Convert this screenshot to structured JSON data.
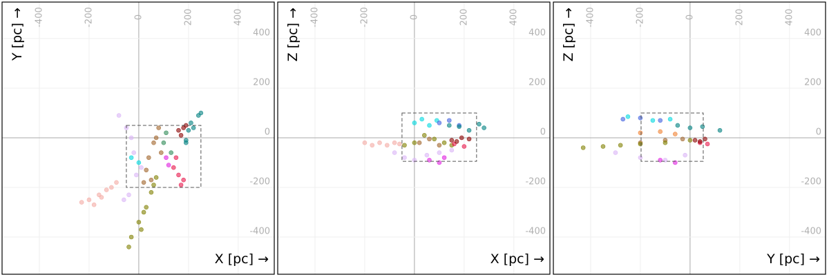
{
  "chart_data": [
    {
      "type": "scatter",
      "x_label": "X [pc] →",
      "y_label": "Y [pc] →",
      "xlim": [
        -550,
        545
      ],
      "ylim": [
        -550,
        547
      ],
      "xticks": [
        -400,
        -200,
        0,
        200,
        400
      ],
      "yticks": [
        -400,
        -200,
        0,
        200,
        400
      ],
      "box": {
        "x": [
          -50,
          250
        ],
        "y": [
          -200,
          50
        ]
      },
      "series": [
        {
          "color": "#f4aaa4",
          "x": [
            -230,
            -200,
            -160,
            -130,
            -110,
            -90,
            -180,
            -150
          ],
          "values": [
            -260,
            -250,
            -230,
            -210,
            -200,
            -180,
            -270,
            -240
          ]
        },
        {
          "color": "#dab4f6",
          "x": [
            -80,
            -50,
            -20,
            -10,
            -40,
            -60,
            10,
            -30
          ],
          "values": [
            90,
            40,
            -60,
            -150,
            -230,
            -250,
            -120,
            0
          ]
        },
        {
          "color": "#00d8e0",
          "x": [
            -30,
            0
          ],
          "values": [
            -80,
            -100
          ]
        },
        {
          "color": "#808000",
          "x": [
            70,
            50,
            30,
            0,
            -30,
            -40,
            60,
            20,
            10
          ],
          "values": [
            -160,
            -220,
            -280,
            -340,
            -400,
            -440,
            -190,
            -300,
            -370
          ]
        },
        {
          "color": "#a0642a",
          "x": [
            80,
            60,
            40,
            30,
            50,
            90,
            20,
            70
          ],
          "values": [
            40,
            -20,
            -80,
            -130,
            -170,
            -60,
            -180,
            0
          ]
        },
        {
          "color": "#2e8b57",
          "x": [
            100,
            130,
            110
          ],
          "values": [
            -20,
            -60,
            20
          ]
        },
        {
          "color": "#e020e0",
          "x": [
            110,
            120
          ],
          "values": [
            -80,
            -110
          ]
        },
        {
          "color": "#e8174b",
          "x": [
            150,
            160,
            170,
            140,
            180
          ],
          "values": [
            -80,
            -150,
            -190,
            -120,
            -170
          ]
        },
        {
          "color": "#008080",
          "x": [
            190,
            200,
            210,
            240,
            250,
            190,
            220
          ],
          "values": [
            -10,
            30,
            60,
            90,
            100,
            -20,
            40
          ]
        },
        {
          "color": "#8b0000",
          "x": [
            160,
            180,
            170,
            190
          ],
          "values": [
            30,
            40,
            10,
            50
          ]
        }
      ]
    },
    {
      "type": "scatter",
      "x_label": "X [pc] →",
      "y_label": "Z [pc] →",
      "xlim": [
        -550,
        545
      ],
      "ylim": [
        -550,
        547
      ],
      "xticks": [
        -400,
        -200,
        0,
        200,
        400
      ],
      "yticks": [
        -400,
        -200,
        0,
        200,
        400
      ],
      "box": {
        "x": [
          -50,
          250
        ],
        "y": [
          -95,
          100
        ]
      },
      "series": [
        {
          "color": "#f4aaa4",
          "x": [
            -200,
            -170,
            -140,
            -110,
            -80,
            -60
          ],
          "values": [
            -20,
            -30,
            -20,
            -30,
            -20,
            -25
          ]
        },
        {
          "color": "#dab4f6",
          "x": [
            -80,
            -40,
            0,
            50,
            100,
            150
          ],
          "values": [
            -60,
            -80,
            -90,
            -70,
            -60,
            -50
          ]
        },
        {
          "color": "#e020e0",
          "x": [
            60,
            100,
            120
          ],
          "values": [
            -90,
            -100,
            -80
          ]
        },
        {
          "color": "#00d8e0",
          "x": [
            0,
            30,
            60,
            90
          ],
          "values": [
            60,
            75,
            50,
            70
          ]
        },
        {
          "color": "#4060e0",
          "x": [
            100,
            140,
            180
          ],
          "values": [
            60,
            70,
            50
          ]
        },
        {
          "color": "#008080",
          "x": [
            140,
            180,
            220,
            260,
            280
          ],
          "values": [
            50,
            45,
            30,
            55,
            40
          ]
        },
        {
          "color": "#a0642a",
          "x": [
            20,
            60,
            100
          ],
          "values": [
            -20,
            -5,
            -30
          ]
        },
        {
          "color": "#808000",
          "x": [
            -40,
            0,
            40,
            80,
            120,
            150
          ],
          "values": [
            -30,
            -20,
            10,
            -5,
            -20,
            -30
          ]
        },
        {
          "color": "#e8174b",
          "x": [
            160,
            200
          ],
          "values": [
            -25,
            -35
          ]
        },
        {
          "color": "#8b0000",
          "x": [
            150,
            170,
            190,
            220
          ],
          "values": [
            -10,
            -15,
            0,
            -5
          ]
        }
      ]
    },
    {
      "type": "scatter",
      "x_label": "Y [pc] →",
      "y_label": "Z [pc] →",
      "xlim": [
        -550,
        545
      ],
      "ylim": [
        -550,
        547
      ],
      "xticks": [
        -400,
        -200,
        0,
        200,
        400
      ],
      "yticks": [
        -400,
        -200,
        0,
        200,
        400
      ],
      "box": {
        "x": [
          -197,
          53
        ],
        "y": [
          -95,
          100
        ]
      },
      "series": [
        {
          "color": "#dab4f6",
          "x": [
            -300,
            -200,
            -100,
            -20
          ],
          "values": [
            -60,
            -80,
            -90,
            -70
          ]
        },
        {
          "color": "#e020e0",
          "x": [
            -120,
            -60
          ],
          "values": [
            -90,
            -100
          ]
        },
        {
          "color": "#00d8e0",
          "x": [
            -250,
            -150,
            -80
          ],
          "values": [
            85,
            70,
            75
          ]
        },
        {
          "color": "#4060e0",
          "x": [
            -270,
            -200,
            -120
          ],
          "values": [
            75,
            80,
            70
          ]
        },
        {
          "color": "#008080",
          "x": [
            -50,
            0,
            50,
            120
          ],
          "values": [
            50,
            40,
            45,
            30
          ]
        },
        {
          "color": "#f08030",
          "x": [
            -200,
            -120,
            -60
          ],
          "values": [
            20,
            25,
            15
          ]
        },
        {
          "color": "#a0642a",
          "x": [
            -200,
            -100,
            -30
          ],
          "values": [
            -20,
            -10,
            -5
          ]
        },
        {
          "color": "#808000",
          "x": [
            -430,
            -350,
            -280,
            -200,
            -100,
            0
          ],
          "values": [
            -40,
            -35,
            -30,
            -25,
            -20,
            -10
          ]
        },
        {
          "color": "#e8174b",
          "x": [
            40,
            70
          ],
          "values": [
            -20,
            -25
          ]
        },
        {
          "color": "#8b0000",
          "x": [
            20,
            40,
            60
          ],
          "values": [
            -10,
            -15,
            -5
          ]
        }
      ]
    }
  ]
}
